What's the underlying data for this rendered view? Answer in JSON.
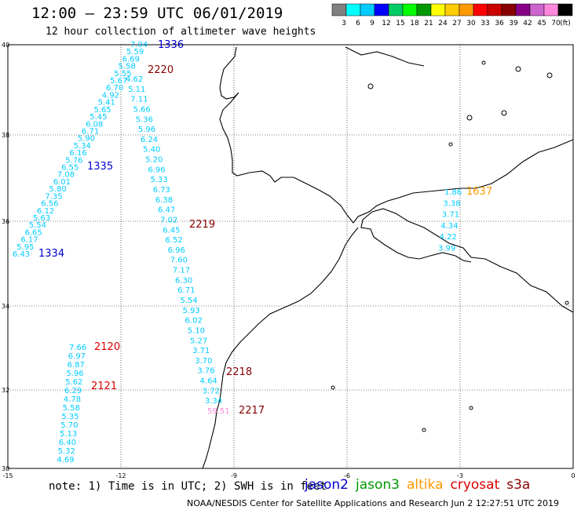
{
  "header": {
    "title": "12:00 – 23:59 UTC 06/01/2019",
    "subtitle": "12 hour collection of altimeter wave heights"
  },
  "scale": {
    "colors": [
      "#808080",
      "#00ffff",
      "#00ccff",
      "#0000ff",
      "#00cc66",
      "#00ff00",
      "#009900",
      "#ffff00",
      "#ffcc00",
      "#ff9900",
      "#ff0000",
      "#cc0000",
      "#880000",
      "#880088",
      "#cc66cc",
      "#ff88dd",
      "#000000"
    ],
    "labels": [
      "3",
      "6",
      "9",
      "12",
      "15",
      "18",
      "21",
      "24",
      "27",
      "30",
      "33",
      "36",
      "39",
      "42",
      "45",
      "70",
      "(ft)"
    ]
  },
  "map": {
    "lat_labels": [
      "40",
      "38",
      "36",
      "34",
      "32",
      "30"
    ],
    "lon_labels": [
      "-15",
      "-12",
      "-9",
      "-6",
      "-3",
      "0"
    ]
  },
  "tracks": [
    {
      "id": "1336",
      "color": "#0000cc",
      "values": [
        "7.04",
        "5.59",
        "6.69",
        "5.58",
        "5.55",
        "5.67",
        "6.70",
        "4.92",
        "5.41",
        "5.65",
        "5.45",
        "6.08",
        "6.71",
        "5.90",
        "5.34",
        "6.16",
        "5.76",
        "6.55",
        "7.08",
        "6.01",
        "5.80",
        "7.35",
        "6.56",
        "6.12",
        "5.63",
        "5.54",
        "6.65",
        "6.17",
        "5.95",
        "6.43"
      ]
    },
    {
      "id": "1335",
      "color": "#0000cc",
      "values": []
    },
    {
      "id": "1334",
      "color": "#0000cc",
      "values": []
    },
    {
      "id": "2220",
      "color": "#880000",
      "values": [
        "4.62",
        "5.11",
        "7.11",
        "5.66",
        "5.36",
        "5.96",
        "6.24",
        "5.40",
        "5.20",
        "6.96",
        "5.33",
        "6.73",
        "6.38",
        "6.47",
        "7.02",
        "6.45",
        "6.52",
        "6.96",
        "7.60",
        "7.17",
        "6.30",
        "6.71",
        "5.54",
        "5.93",
        "6.02",
        "5.10",
        "5.27",
        "3.71",
        "3.70",
        "3.76",
        "4.64",
        "3.72",
        "3.34",
        "59.51"
      ]
    },
    {
      "id": "2219",
      "color": "#880000",
      "values": []
    },
    {
      "id": "2218",
      "color": "#880000",
      "values": []
    },
    {
      "id": "2217",
      "color": "#880000",
      "values": []
    },
    {
      "id": "2120",
      "color": "#dd0000",
      "values": [
        "7.66",
        "6.97",
        "6.87",
        "5.96",
        "5.62",
        "6.29",
        "4.78",
        "5.58",
        "5.35",
        "5.70",
        "5.13",
        "6.40",
        "5.32",
        "4.69"
      ]
    },
    {
      "id": "2121",
      "color": "#dd0000",
      "values": []
    },
    {
      "id": "1637",
      "color": "#ff9900",
      "values": [
        "1.86",
        "3.38",
        "3.71",
        "4.34",
        "4.22",
        "3.99"
      ]
    }
  ],
  "footer": {
    "note": "note:  1) Time is in UTC;  2) SWH is in feet",
    "satellites": [
      {
        "name": "jason2",
        "color": "#0000cc"
      },
      {
        "name": "jason3",
        "color": "#009900"
      },
      {
        "name": "altika",
        "color": "#ff9900"
      },
      {
        "name": "cryosat",
        "color": "#dd0000"
      },
      {
        "name": "s3a",
        "color": "#880000"
      }
    ],
    "credit": "NOAA/NESDIS Center for Satellite Applications and Research     Jun  2 12:27:51 UTC 2019"
  }
}
